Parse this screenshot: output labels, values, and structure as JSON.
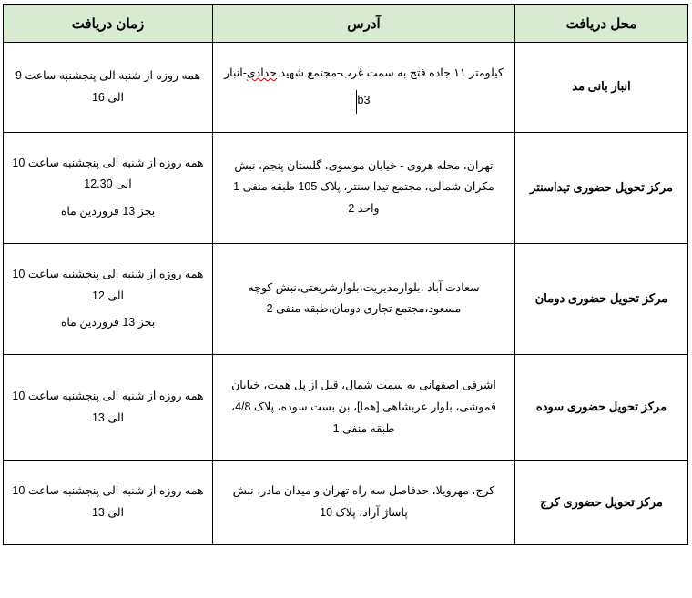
{
  "table": {
    "header_bg": "#d9ead3",
    "border_color": "#000000",
    "columns": [
      {
        "key": "location",
        "label": "محل دریافت"
      },
      {
        "key": "address",
        "label": "آدرس"
      },
      {
        "key": "time",
        "label": "زمان دریافت"
      }
    ],
    "rows": [
      {
        "location": "انبار بانی مد",
        "address_p1_before": "کیلومتر ۱۱ جاده فتح به سمت غرب-مجتمع شهید ",
        "address_p1_squiggly": "حدادی",
        "address_p1_after": "-انبار",
        "address_p2": "b3",
        "has_cursor": true,
        "time_p1": "همه روزه از شنبه الی پنجشنبه ساعت 9 الی 16",
        "time_p2": ""
      },
      {
        "location": "مرکز تحویل حضوری تیداسنتر",
        "address_p1": "تهران، محله هروی - خیابان موسوی، گلستان پنجم، نبش مکران شمالی، مجتمع تیدا سنتر، پلاک 105 طبقه منفی 1 واحد 2",
        "time_p1": "همه روزه از شنبه الی پنجشنبه ساعت 10 الی 12.30",
        "time_p2": "بجز 13 فروردین ماه"
      },
      {
        "location": "مرکز تحویل حضوری دومان",
        "address_p1": "سعادت آباد ،بلوارمدیریت،بلوارشریعتی،نبش کوچه مسعود،مجتمع تجاری دومان،طبقه منفی 2",
        "time_p1": "همه روزه از شنبه الی پنجشنبه ساعت 10 الی 12",
        "time_p2": "بجز 13 فروردین ماه"
      },
      {
        "location": "مرکز تحویل حضوری سوده",
        "address_p1": "اشرفی اصفهانی به سمت شمال، قبل از پل همت، خیابان قموشی، بلوار عربشاهی [هما]، بن بست سوده، پلاک 4/8، طبقه منفی 1",
        "time_p1": "همه روزه از شنبه الی پنجشنبه ساعت 10 الی 13",
        "time_p2": ""
      },
      {
        "location": "مرکز تحویل حضوری کرج",
        "address_p1": "کرج، مهرویلا، حدفاصل سه راه تهران و میدان مادر، نبش پاساژ آراد، پلاک 10",
        "time_p1": "همه روزه از شنبه الی پنجشنبه ساعت 10 الی 13",
        "time_p2": ""
      }
    ]
  }
}
